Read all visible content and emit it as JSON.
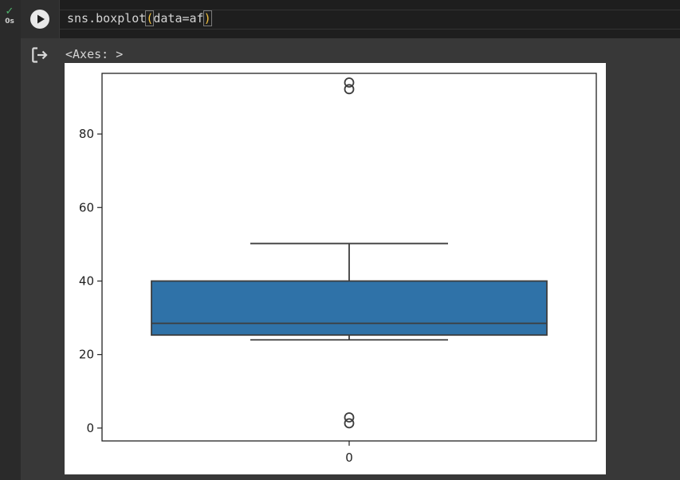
{
  "cell": {
    "status_check": "✓",
    "exec_time": "0s",
    "code_pre": "sns.boxplot",
    "code_open": "(",
    "code_mid": "data=af",
    "code_close": ")"
  },
  "output": {
    "text": "<Axes: >"
  },
  "chart_data": {
    "type": "box",
    "categories": [
      "0"
    ],
    "ylim": [
      -3.5,
      96.5
    ],
    "yticks": [
      0,
      20,
      40,
      60,
      80
    ],
    "xticks": [
      "0"
    ],
    "box_color": "#2f72a8",
    "box": {
      "whisker_low": 24,
      "q1": 25.3,
      "median": 28.5,
      "q3": 40,
      "whisker_high": 50.2
    },
    "outliers": [
      1.3,
      2.9,
      92.2,
      94
    ]
  }
}
